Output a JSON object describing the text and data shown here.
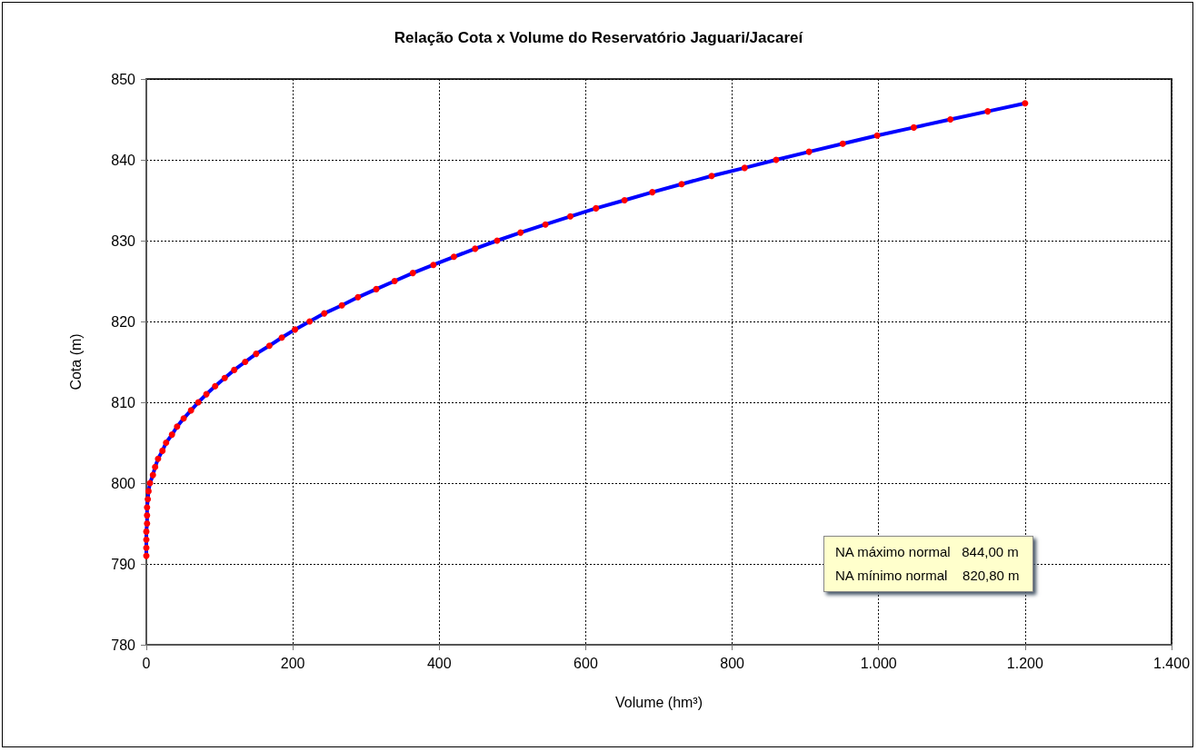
{
  "chart_data": {
    "type": "line",
    "title": "Relação Cota x Volume do Reservatório Jaguari/Jacareí",
    "xlabel": "Volume (hm³)",
    "ylabel": "Cota (m)",
    "x": [
      0,
      0,
      0,
      0,
      1,
      1,
      1,
      2,
      3,
      5,
      9,
      12,
      16,
      22,
      27,
      35,
      42,
      51,
      61,
      71,
      82,
      94,
      107,
      120,
      135,
      150,
      168,
      185,
      203,
      223,
      243,
      267,
      289,
      314,
      339,
      364,
      392,
      420,
      449,
      479,
      511,
      545,
      579,
      614,
      653,
      691,
      731,
      772,
      817,
      860,
      905,
      951,
      998,
      1048,
      1098,
      1149,
      1200
    ],
    "series": [
      {
        "color": "#0000ff",
        "colors": [
          "#ff0000",
          "#ff0000",
          "#ff0000",
          "#ff0000",
          "#ff0000",
          "#ff0000",
          "#ff0000",
          "#ff0000",
          "#ff0000",
          "#ff0000",
          "#ff0000",
          "#ff0000",
          "#ff0000",
          "#ff0000",
          "#ff0000",
          "#ff0000",
          "#ff0000",
          "#ff0000",
          "#ff0000",
          "#ff0000",
          "#ff0000",
          "#ff0000",
          "#ff0000",
          "#ff0000",
          "#ff0000",
          "#ff0000",
          "#ff0000",
          "#ff0000",
          "#ff0000",
          "#ff0000",
          "#ff0000",
          "#ff0000",
          "#ff0000",
          "#ff0000",
          "#ff0000",
          "#ff0000",
          "#ff0000",
          "#ff0000",
          "#ff0000",
          "#ff0000",
          "#ff0000",
          "#ff0000",
          "#ff0000",
          "#ff0000",
          "#ff0000",
          "#ff0000",
          "#ff0000",
          "#ff0000",
          "#ff0000",
          "#ff0000",
          "#ff0000",
          "#ff0000",
          "#ff0000",
          "#ff0000",
          "#ff0000",
          "#ff0000",
          "#ff0000"
        ],
        "values": [
          791,
          792,
          793,
          794,
          795,
          796,
          797,
          798,
          799,
          800,
          801,
          802,
          803,
          804,
          805,
          806,
          807,
          808,
          809,
          810,
          811,
          812,
          813,
          814,
          815,
          816,
          817,
          818,
          819,
          820,
          821,
          822,
          823,
          824,
          825,
          826,
          827,
          828,
          829,
          830,
          831,
          832,
          833,
          834,
          835,
          836,
          837,
          838,
          839,
          840,
          841,
          842,
          843,
          844,
          845,
          846,
          847
        ]
      }
    ],
    "xlim": [
      0,
      1400
    ],
    "xticks": [
      0,
      200,
      400,
      600,
      800,
      {
        "value": 1000,
        "label": "1.000"
      },
      {
        "value": 1200,
        "label": "1.200"
      },
      {
        "value": 1400,
        "label": "1.400"
      }
    ],
    "ylim": [
      780,
      850
    ],
    "yticks": [
      780,
      790,
      800,
      810,
      820,
      830,
      840,
      850
    ],
    "grid": true,
    "marker": "circle",
    "line_style": "solid",
    "annotations": [
      "NA máximo normal   844,00 m",
      "NA mínimo normal    820,80 m"
    ]
  }
}
